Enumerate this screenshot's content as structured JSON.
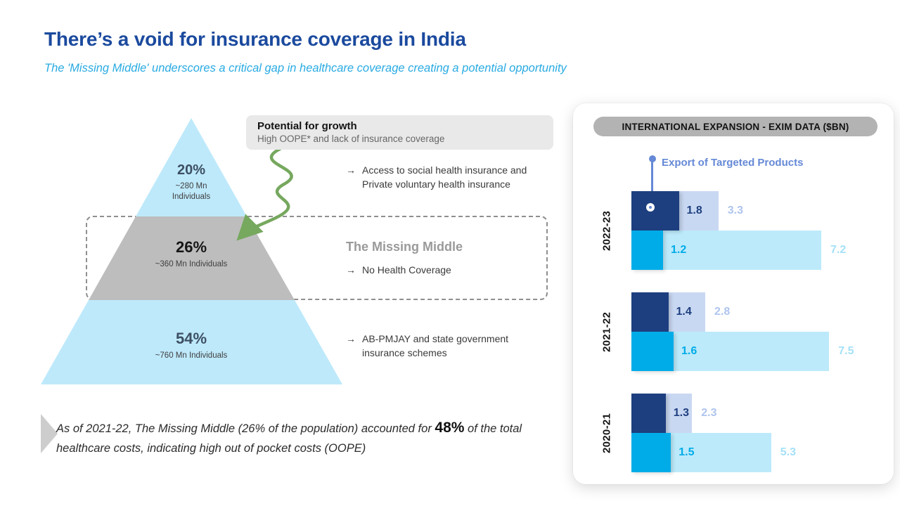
{
  "title": "There’s a void for insurance coverage in India",
  "subtitle": "The 'Missing Middle' underscores a critical gap in healthcare coverage creating a potential opportunity",
  "glyphs": {
    "arrow": "→"
  },
  "colors": {
    "title_blue": "#1B4A9E",
    "subtitle_cyan": "#29ABE2",
    "pyramid_blue": "#BEE9FB",
    "pyramid_gray": "#BDBDBD",
    "pct_blue_gray": "#3D4F63",
    "pct_dark": "#161616",
    "callout_bg": "#E9E9E9",
    "green_arrow": "#76A85E",
    "missing_middle_gray": "#9A9A9A",
    "navy": "#1E3F7F",
    "periwinkle": "#C9D8F2",
    "periwinkle_label": "#AFC5EE",
    "cyan": "#00ACE8",
    "light_cyan": "#BCEAFB",
    "light_cyan_label": "#A5E1F8",
    "cornflower": "#6589D6",
    "pill_bg": "#B3B3B3"
  },
  "pyramid": {
    "segments": [
      {
        "pct": "20%",
        "sub": "~280 Mn Individuals"
      },
      {
        "pct": "26%",
        "sub": "~360 Mn Individuals"
      },
      {
        "pct": "54%",
        "sub": "~760 Mn Individuals"
      }
    ]
  },
  "callout": {
    "title": "Potential for growth",
    "subtitle": "High OOPE* and lack of insurance coverage"
  },
  "bullets": {
    "top": "Access to social health insurance and Private voluntary health insurance",
    "middle_heading": "The Missing Middle",
    "middle": "No Health Coverage",
    "bottom": "AB-PMJAY and state government insurance schemes"
  },
  "footnote": {
    "pre": "As of 2021-22, The Missing Middle (26% of the population) accounted for ",
    "highlight": "48%",
    "post": " of the total healthcare costs, indicating high out of pocket costs (OOPE)"
  },
  "chart_data": {
    "type": "bar",
    "orientation": "horizontal",
    "title": "INTERNATIONAL EXPANSION - EXIM DATA ($BN)",
    "annotation": "Export of Targeted Products",
    "unit": "$BN",
    "xlim": [
      0,
      8
    ],
    "grid": false,
    "categories": [
      "2022-23",
      "2021-22",
      "2020-21"
    ],
    "groups": [
      {
        "year": "2022-23",
        "rows": [
          {
            "theme": "navy",
            "inner": 1.8,
            "outer": 3.3
          },
          {
            "theme": "cyan",
            "inner": 1.2,
            "outer": 7.2
          }
        ]
      },
      {
        "year": "2021-22",
        "rows": [
          {
            "theme": "navy",
            "inner": 1.4,
            "outer": 2.8
          },
          {
            "theme": "cyan",
            "inner": 1.6,
            "outer": 7.5
          }
        ]
      },
      {
        "year": "2020-21",
        "rows": [
          {
            "theme": "navy",
            "inner": 1.3,
            "outer": 2.3
          },
          {
            "theme": "cyan",
            "inner": 1.5,
            "outer": 5.3
          }
        ]
      }
    ]
  }
}
